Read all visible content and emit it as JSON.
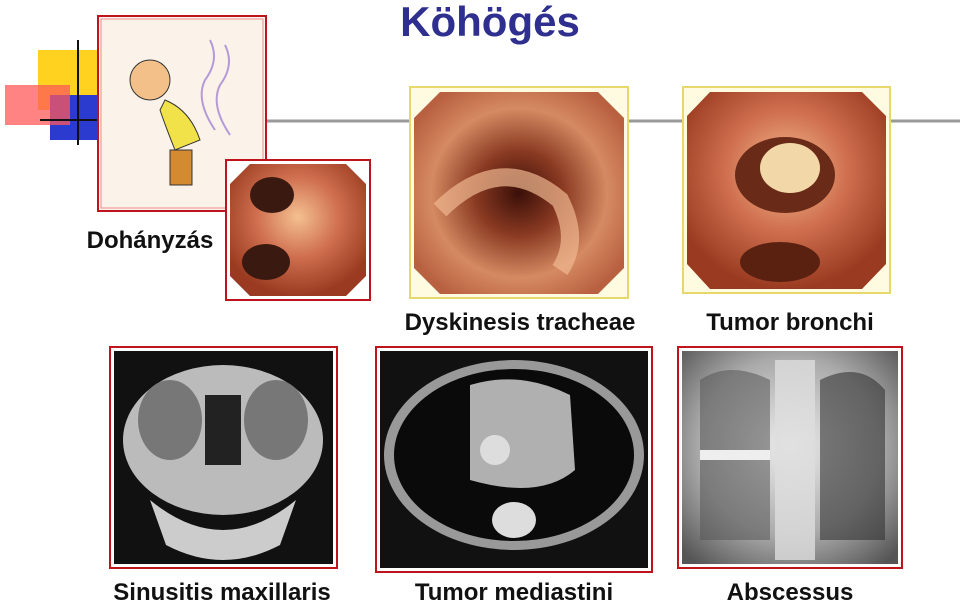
{
  "header": {
    "title": "Köhögés"
  },
  "captions": {
    "smoking": "Dohányzás",
    "dyskinesis": "Dyskinesis tracheae",
    "tumor_bronchi": "Tumor bronchi",
    "sinusitis": "Sinusitis maxillaris",
    "tumor_mediastini": "Tumor mediastini",
    "abscessus": "Abscessus"
  }
}
